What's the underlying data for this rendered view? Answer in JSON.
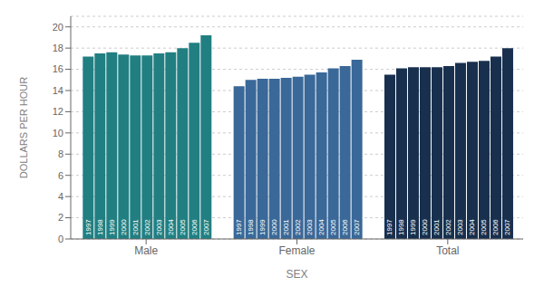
{
  "chart_data": {
    "type": "bar",
    "xlabel": "SEX",
    "ylabel": "DOLLARS PER HOUR",
    "categories": [
      "Male",
      "Female",
      "Total"
    ],
    "series": [
      {
        "name": "1997",
        "values": [
          17.2,
          14.4,
          15.5
        ]
      },
      {
        "name": "1998",
        "values": [
          17.5,
          15.0,
          16.1
        ]
      },
      {
        "name": "1999",
        "values": [
          17.6,
          15.1,
          16.2
        ]
      },
      {
        "name": "2000",
        "values": [
          17.4,
          15.1,
          16.2
        ]
      },
      {
        "name": "2001",
        "values": [
          17.3,
          15.2,
          16.2
        ]
      },
      {
        "name": "2002",
        "values": [
          17.3,
          15.3,
          16.3
        ]
      },
      {
        "name": "2003",
        "values": [
          17.5,
          15.5,
          16.6
        ]
      },
      {
        "name": "2004",
        "values": [
          17.6,
          15.7,
          16.7
        ]
      },
      {
        "name": "2005",
        "values": [
          18.0,
          16.1,
          16.8
        ]
      },
      {
        "name": "2006",
        "values": [
          18.5,
          16.3,
          17.2
        ]
      },
      {
        "name": "2007",
        "values": [
          19.2,
          16.9,
          18.0
        ]
      }
    ],
    "colors": [
      "#217f82",
      "#3a6898",
      "#18304e"
    ],
    "ylim": [
      0,
      21
    ],
    "yticks": [
      0,
      2,
      4,
      6,
      8,
      10,
      12,
      14,
      16,
      18,
      20
    ],
    "grid": true
  }
}
